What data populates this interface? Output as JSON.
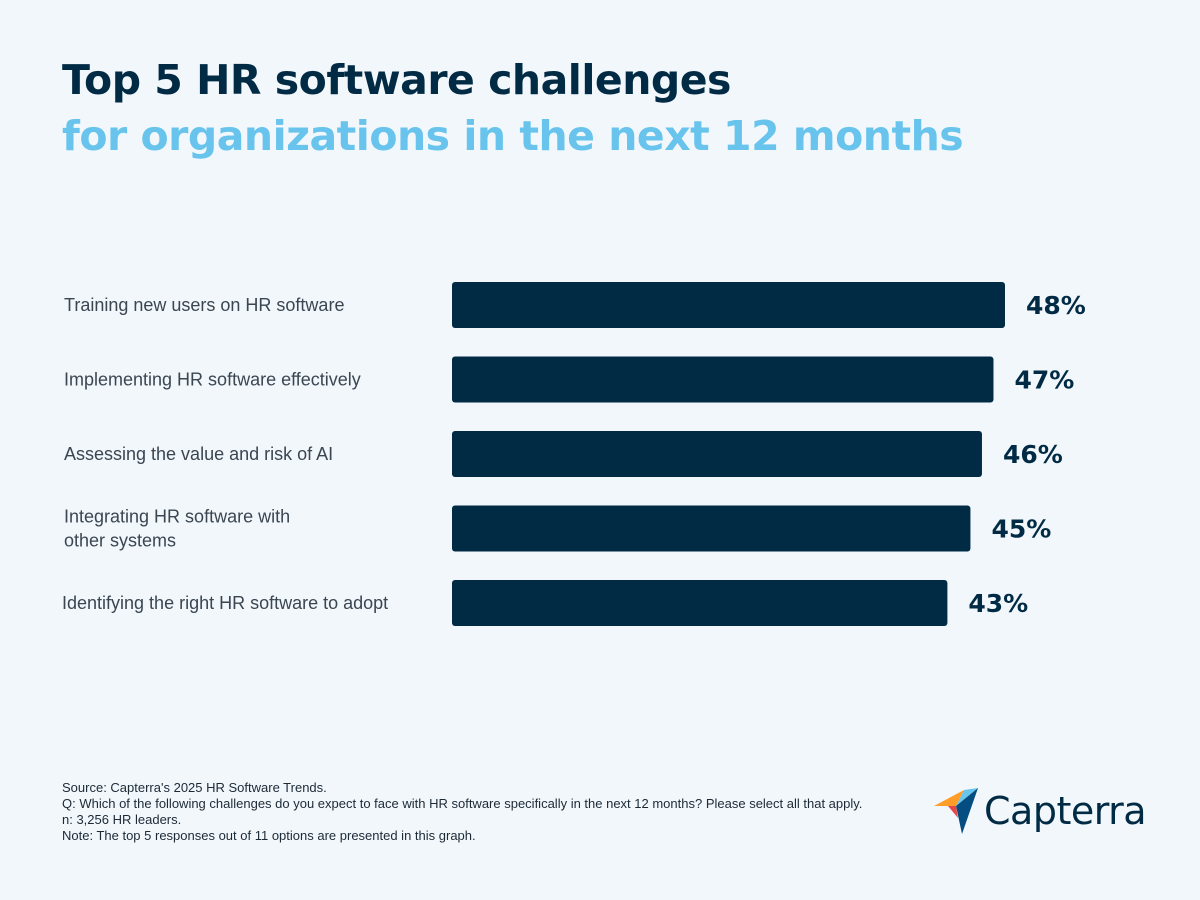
{
  "title": {
    "line1": "Top 5 HR software challenges",
    "line2": "for organizations in the next 12 months"
  },
  "chart_data": {
    "type": "bar",
    "orientation": "horizontal",
    "categories": [
      [
        "Training new users on HR software"
      ],
      [
        "Implementing HR software effectively"
      ],
      [
        "Assessing the value and risk of AI"
      ],
      [
        "Integrating HR software with",
        "other systems"
      ],
      [
        "Identifying the right HR software to adopt"
      ]
    ],
    "values": [
      48,
      47,
      46,
      45,
      43
    ],
    "value_labels": [
      "48%",
      "47%",
      "46%",
      "45%",
      "43%"
    ],
    "bar_color": "#012b44",
    "xlim": [
      0,
      48
    ],
    "grid": false
  },
  "footnote": {
    "source": "Source: Capterra's  2025 HR Software Trends.",
    "question": "Q: Which of the following challenges do you expect to face with HR software specifically in the next 12 months? Please select all that apply.",
    "sample": "n: 3,256 HR leaders.",
    "note": "Note: The top 5 responses out of 11 options are presented in this graph."
  },
  "logo": {
    "text": "Capterra",
    "colors": [
      "#ff9d28",
      "#68c5ed",
      "#044d80",
      "#e54747"
    ]
  },
  "colors": {
    "background": "#f2f7fc",
    "title_primary": "#012b44",
    "title_accent": "#68c4ec"
  }
}
